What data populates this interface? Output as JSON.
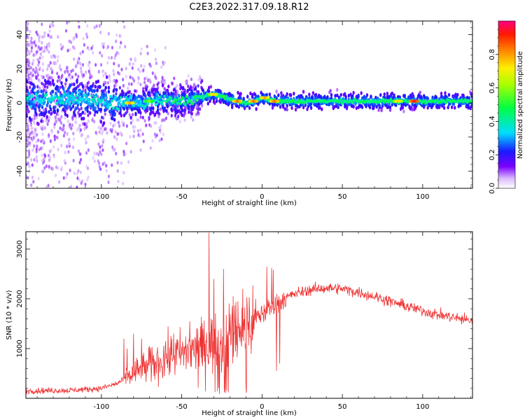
{
  "title": "C2E3.2022.317.09.18.R12",
  "colors": {
    "snr_line": "#ee3333",
    "axes": "#000000",
    "background": "#ffffff"
  },
  "chart_data": [
    {
      "type": "heatmap",
      "name": "spectrogram",
      "xlabel": "Height of straight line (km)",
      "ylabel": "Frequency (Hz)",
      "xlim": [
        -147,
        131
      ],
      "ylim": [
        -50,
        48
      ],
      "xticks": [
        -100,
        -50,
        0,
        50,
        100
      ],
      "yticks": [
        -40,
        -20,
        0,
        20,
        40
      ],
      "ridge": [
        [
          -140,
          2
        ],
        [
          -120,
          3
        ],
        [
          -100,
          1
        ],
        [
          -90,
          0
        ],
        [
          -80,
          0
        ],
        [
          -70,
          1
        ],
        [
          -60,
          2
        ],
        [
          -50,
          1
        ],
        [
          -40,
          3
        ],
        [
          -30,
          5
        ],
        [
          -25,
          4
        ],
        [
          -20,
          2
        ],
        [
          -15,
          1
        ],
        [
          -10,
          0
        ],
        [
          -5,
          1
        ],
        [
          0,
          3
        ],
        [
          3,
          2
        ],
        [
          10,
          1
        ],
        [
          20,
          1
        ],
        [
          50,
          1
        ],
        [
          80,
          1
        ],
        [
          100,
          1
        ],
        [
          131,
          1
        ]
      ],
      "hotspots": [
        {
          "x": -82,
          "f": 0,
          "amp": 0.8
        },
        {
          "x": -70,
          "f": 1,
          "amp": 0.6
        },
        {
          "x": -30,
          "f": 5,
          "amp": 0.75
        },
        {
          "x": -15,
          "f": 1,
          "amp": 0.85
        },
        {
          "x": -5,
          "f": 1,
          "amp": 0.85
        },
        {
          "x": 2,
          "f": 3,
          "amp": 0.8
        },
        {
          "x": 8,
          "f": 1,
          "amp": 0.85
        },
        {
          "x": 85,
          "f": 1,
          "amp": 0.75
        },
        {
          "x": 95,
          "f": 1,
          "amp": 0.95
        }
      ],
      "colorbar": {
        "label": "Normalized spectral amplitude",
        "range": [
          0.0,
          1.0
        ],
        "ticks": [
          0.0,
          0.2,
          0.4,
          0.6,
          0.8
        ],
        "tick_labels": [
          "0.0",
          "0.2",
          "0.4",
          "0.6",
          "0.8"
        ]
      }
    },
    {
      "type": "line",
      "name": "snr",
      "xlabel": "Height of straight line (km)",
      "ylabel": "SNR (10 * v/v)",
      "xlim": [
        -147,
        131
      ],
      "ylim": [
        0,
        3350
      ],
      "xticks": [
        -100,
        -50,
        0,
        50,
        100
      ],
      "yticks": [
        1000,
        2000,
        3000
      ],
      "envelope": [
        [
          -147,
          150
        ],
        [
          -120,
          160
        ],
        [
          -100,
          200
        ],
        [
          -90,
          300
        ],
        [
          -80,
          500
        ],
        [
          -70,
          650
        ],
        [
          -60,
          800
        ],
        [
          -50,
          900
        ],
        [
          -40,
          1000
        ],
        [
          -30,
          1100
        ],
        [
          -20,
          1250
        ],
        [
          -10,
          1450
        ],
        [
          0,
          1700
        ],
        [
          10,
          1950
        ],
        [
          20,
          2100
        ],
        [
          30,
          2180
        ],
        [
          40,
          2220
        ],
        [
          50,
          2200
        ],
        [
          60,
          2130
        ],
        [
          70,
          2050
        ],
        [
          80,
          1950
        ],
        [
          90,
          1850
        ],
        [
          100,
          1760
        ],
        [
          110,
          1680
        ],
        [
          120,
          1620
        ],
        [
          131,
          1560
        ]
      ],
      "spikes": [
        [
          -86,
          1200
        ],
        [
          -84,
          1000
        ],
        [
          -80,
          1300
        ],
        [
          -75,
          1200
        ],
        [
          -70,
          1050
        ],
        [
          -60,
          1150
        ],
        [
          -55,
          1300
        ],
        [
          -48,
          1050
        ],
        [
          -45,
          1550
        ],
        [
          -40,
          1400
        ],
        [
          -35,
          1150
        ],
        [
          -33,
          3330
        ],
        [
          -30,
          2400
        ],
        [
          -27,
          2000
        ],
        [
          -24,
          2600
        ],
        [
          -21,
          2150
        ],
        [
          -18,
          2050
        ],
        [
          -15,
          1950
        ],
        [
          -12,
          2200
        ],
        [
          -8,
          2030
        ],
        [
          -4,
          2000
        ],
        [
          3,
          2650
        ],
        [
          6,
          2620
        ],
        [
          7,
          2580
        ]
      ],
      "dips": [
        [
          9,
          550
        ],
        [
          11,
          700
        ],
        [
          -10,
          200
        ],
        [
          -22,
          150
        ]
      ]
    }
  ]
}
